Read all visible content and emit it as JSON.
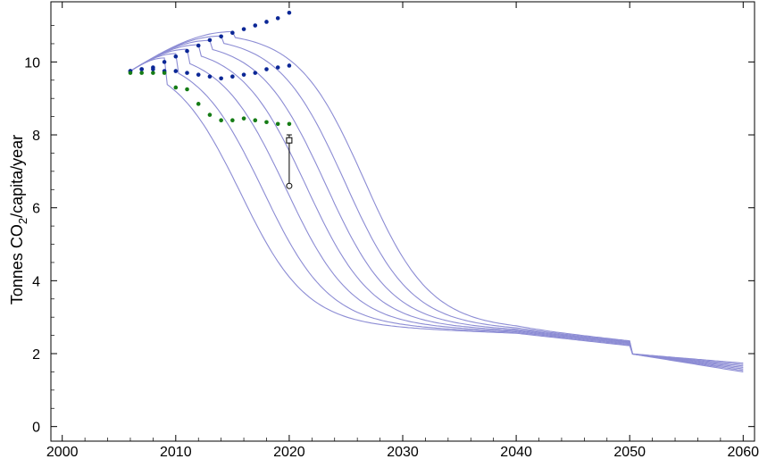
{
  "chart_data": {
    "type": "line",
    "title": "",
    "xlabel": "",
    "ylabel": {
      "prefix": "Tonnes CO",
      "subscript": "2",
      "suffix": "/capita/year"
    },
    "xlim": [
      1999,
      2061
    ],
    "ylim": [
      -0.4,
      11.65
    ],
    "x_ticks": [
      2000,
      2010,
      2020,
      2030,
      2040,
      2050,
      2060
    ],
    "y_ticks": [
      0,
      2,
      4,
      6,
      8,
      10
    ],
    "grid": false,
    "colors": {
      "curves": "#8c8cd4",
      "blue_dots": "#0b2796",
      "green_dots": "#157c15",
      "marker": "#000000"
    },
    "pathways": [
      {
        "peak_year": 2009,
        "midpoint_year": 2015.6,
        "floor": 2.85,
        "tail_slope": 0.04
      },
      {
        "peak_year": 2010,
        "midpoint_year": 2017.6,
        "floor": 2.85,
        "tail_slope": 0.04
      },
      {
        "peak_year": 2011,
        "midpoint_year": 2019.6,
        "floor": 2.85,
        "tail_slope": 0.04
      },
      {
        "peak_year": 2012,
        "midpoint_year": 2021.4,
        "floor": 2.85,
        "tail_slope": 0.04
      },
      {
        "peak_year": 2013,
        "midpoint_year": 2023.1,
        "floor": 2.85,
        "tail_slope": 0.04
      },
      {
        "peak_year": 2014,
        "midpoint_year": 2024.8,
        "floor": 2.85,
        "tail_slope": 0.04
      },
      {
        "peak_year": 2015,
        "midpoint_year": 2026.5,
        "floor": 2.85,
        "tail_slope": 0.04
      }
    ],
    "series": [
      {
        "color_key": "blue_dots",
        "points": [
          [
            2006,
            9.75
          ],
          [
            2007,
            9.8
          ],
          [
            2008,
            9.85
          ],
          [
            2009,
            10.0
          ],
          [
            2010,
            10.15
          ],
          [
            2011,
            10.3
          ],
          [
            2012,
            10.45
          ],
          [
            2013,
            10.6
          ],
          [
            2014,
            10.7
          ],
          [
            2015,
            10.8
          ],
          [
            2016,
            10.9
          ],
          [
            2017,
            11.0
          ],
          [
            2018,
            11.1
          ],
          [
            2019,
            11.2
          ],
          [
            2020,
            11.35
          ]
        ]
      },
      {
        "color_key": "blue_dots",
        "points": [
          [
            2006,
            9.75
          ],
          [
            2007,
            9.8
          ],
          [
            2008,
            9.8
          ],
          [
            2009,
            9.75
          ],
          [
            2010,
            9.75
          ],
          [
            2011,
            9.7
          ],
          [
            2012,
            9.65
          ],
          [
            2013,
            9.6
          ],
          [
            2014,
            9.55
          ],
          [
            2015,
            9.6
          ],
          [
            2016,
            9.65
          ],
          [
            2017,
            9.7
          ],
          [
            2018,
            9.8
          ],
          [
            2019,
            9.85
          ],
          [
            2020,
            9.9
          ]
        ]
      },
      {
        "color_key": "green_dots",
        "points": [
          [
            2006,
            9.7
          ],
          [
            2007,
            9.7
          ],
          [
            2008,
            9.7
          ],
          [
            2009,
            9.7
          ],
          [
            2010,
            9.3
          ],
          [
            2011,
            9.25
          ],
          [
            2012,
            8.85
          ],
          [
            2013,
            8.55
          ],
          [
            2014,
            8.4
          ],
          [
            2015,
            8.4
          ],
          [
            2016,
            8.45
          ],
          [
            2017,
            8.4
          ],
          [
            2018,
            8.35
          ],
          [
            2019,
            8.3
          ],
          [
            2020,
            8.3
          ]
        ]
      }
    ],
    "marker": {
      "x": 2020,
      "square": 7.85,
      "circle": 6.6,
      "upper": 8.0
    }
  }
}
